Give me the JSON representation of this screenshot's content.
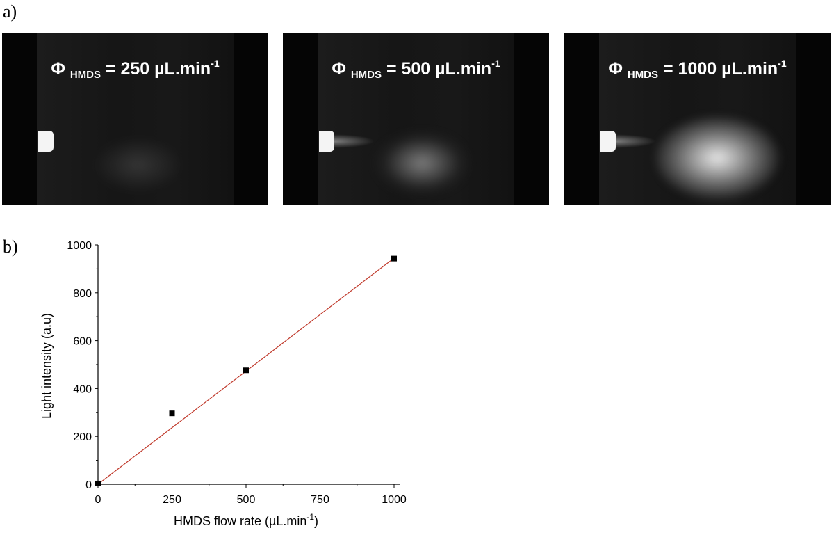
{
  "panel_a": {
    "label": "a)",
    "photos": [
      {
        "symbol": "Φ",
        "subscript": "HMDS",
        "value_text": "= 250 µL.min",
        "superscript": "-1",
        "brightness": 0.35
      },
      {
        "symbol": "Φ",
        "subscript": "HMDS",
        "value_text": "= 500 µL.min",
        "superscript": "-1",
        "brightness": 0.65
      },
      {
        "symbol": "Φ",
        "subscript": "HMDS",
        "value_text": "= 1000 µL.min",
        "superscript": "-1",
        "brightness": 1.0
      }
    ]
  },
  "panel_b": {
    "label": "b)"
  },
  "chart_data": {
    "type": "scatter",
    "x": [
      0,
      250,
      500,
      1000
    ],
    "y": [
      3,
      296,
      476,
      943
    ],
    "fit_line": {
      "x": [
        0,
        1000
      ],
      "y": [
        0,
        945
      ],
      "color": "#c0392b"
    },
    "marker_color": "#000000",
    "xlabel": "HMDS flow rate (µL.min",
    "xlabel_sup": "-1",
    "xlabel_end": ")",
    "ylabel": "Light intensity (a.u)",
    "xlim": [
      0,
      1000
    ],
    "ylim": [
      0,
      1000
    ],
    "xticks": [
      "0",
      "250",
      "500",
      "750",
      "1000"
    ],
    "yticks": [
      "0",
      "200",
      "400",
      "600",
      "800",
      "1000"
    ],
    "grid": false
  }
}
